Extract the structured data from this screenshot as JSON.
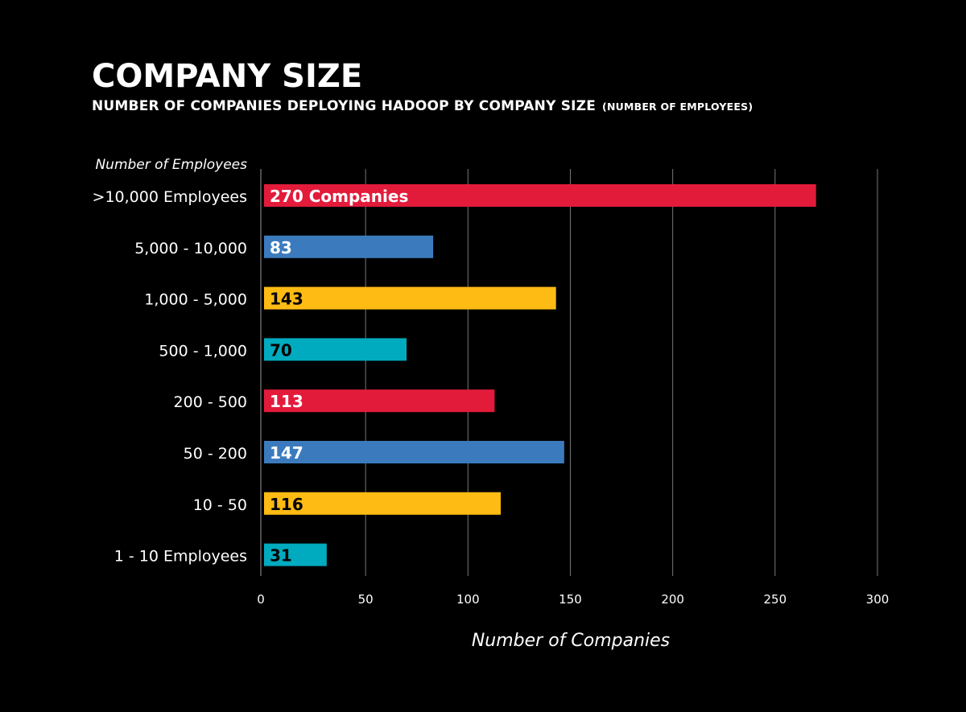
{
  "chart_data": {
    "type": "bar",
    "orientation": "horizontal",
    "title": "COMPANY SIZE",
    "subtitle": "NUMBER OF COMPANIES DEPLOYING HADOOP  BY COMPANY SIZE",
    "subtitle_note": "(NUMBER OF EMPLOYEES)",
    "ylabel": "Number of Employees",
    "xlabel": "Number of Companies",
    "xlim": [
      0,
      300
    ],
    "xticks": [
      0,
      50,
      100,
      150,
      200,
      250,
      300
    ],
    "grid": true,
    "categories": [
      ">10,000 Employees",
      "5,000 - 10,000",
      "1,000 - 5,000",
      "500 - 1,000",
      "200 - 500",
      "50 - 200",
      "10 - 50",
      "1 - 10 Employees"
    ],
    "values": [
      270,
      83,
      143,
      70,
      113,
      147,
      116,
      31
    ],
    "data_labels": [
      "270 Companies",
      "83",
      "143",
      "70",
      "113",
      "147",
      "116",
      "31"
    ],
    "colors": [
      "#e31b3b",
      "#3b7bbd",
      "#fdbb14",
      "#00abbf",
      "#e31b3b",
      "#3b7bbd",
      "#fdbb14",
      "#00abbf"
    ],
    "label_colors": [
      "#ffffff",
      "#ffffff",
      "#000000",
      "#000000",
      "#ffffff",
      "#ffffff",
      "#000000",
      "#000000"
    ]
  }
}
